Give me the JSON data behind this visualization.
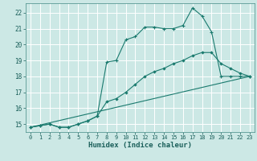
{
  "xlabel": "Humidex (Indice chaleur)",
  "bg_color": "#cce8e5",
  "grid_color": "#ffffff",
  "line_color": "#1a7a6e",
  "xlim": [
    -0.5,
    23.5
  ],
  "ylim": [
    14.5,
    22.6
  ],
  "yticks": [
    15,
    16,
    17,
    18,
    19,
    20,
    21,
    22
  ],
  "xticks": [
    0,
    1,
    2,
    3,
    4,
    5,
    6,
    7,
    8,
    9,
    10,
    11,
    12,
    13,
    14,
    15,
    16,
    17,
    18,
    19,
    20,
    21,
    22,
    23
  ],
  "lines": [
    {
      "x": [
        0,
        1,
        2,
        3,
        4,
        5,
        6,
        7,
        8,
        9,
        10,
        11,
        12,
        13,
        14,
        15,
        16,
        17,
        18,
        19,
        20,
        21,
        22,
        23
      ],
      "y": [
        14.8,
        14.9,
        15.0,
        14.8,
        14.8,
        15.0,
        15.2,
        15.5,
        18.9,
        19.0,
        20.3,
        20.5,
        21.1,
        21.1,
        21.0,
        21.0,
        21.2,
        22.3,
        21.8,
        20.8,
        18.0,
        18.0,
        18.0,
        18.0
      ],
      "marker": "+"
    },
    {
      "x": [
        0,
        1,
        2,
        3,
        4,
        5,
        6,
        7,
        8,
        9,
        10,
        11,
        12,
        13,
        14,
        15,
        16,
        17,
        18,
        19,
        20,
        21,
        22,
        23
      ],
      "y": [
        14.8,
        14.9,
        15.0,
        14.8,
        14.8,
        15.0,
        15.2,
        15.5,
        16.4,
        16.6,
        17.0,
        17.5,
        18.0,
        18.3,
        18.5,
        18.8,
        19.0,
        19.3,
        19.5,
        19.5,
        18.8,
        18.5,
        18.2,
        18.0
      ],
      "marker": "d"
    },
    {
      "x": [
        0,
        23
      ],
      "y": [
        14.8,
        18.0
      ],
      "marker": null
    }
  ]
}
